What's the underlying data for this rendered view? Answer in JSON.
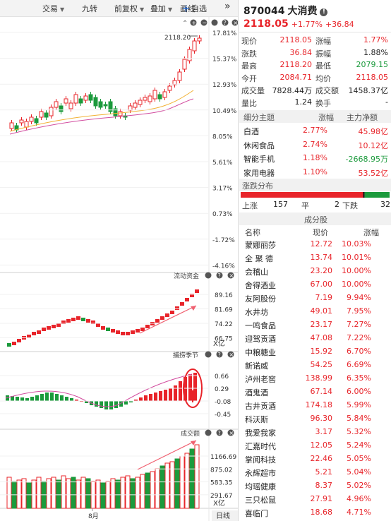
{
  "toolbar": {
    "items": [
      "交易",
      "九转",
      "前复权",
      "叠加",
      "画线"
    ],
    "add_label": "自选",
    "more": "»"
  },
  "chart_data": [
    {
      "type": "candlestick",
      "title": "",
      "price_label": "2118.20",
      "yticks": [
        "17.81%",
        "15.37%",
        "12.93%",
        "10.49%",
        "8.05%",
        "5.61%",
        "3.17%",
        "0.73%",
        "-1.72%",
        "-4.16%"
      ],
      "xlabel": "8月",
      "colors": {
        "up": "#e8242a",
        "down": "#1b9a3c",
        "ma1": "#f2b134",
        "ma2": "#d24d9f"
      }
    },
    {
      "type": "bar",
      "title": "流动资金",
      "unit": "X亿",
      "yticks": [
        "89.16",
        "81.69",
        "74.22",
        "66.75"
      ]
    },
    {
      "type": "bar",
      "title": "捕捞季节",
      "yticks": [
        "0.66",
        "0.29",
        "-0.08",
        "-0.45"
      ]
    },
    {
      "type": "bar",
      "title": "成交额",
      "unit": "X亿",
      "yticks": [
        "1166.69",
        "875.02",
        "583.35",
        "291.67"
      ]
    }
  ],
  "chart_footer": {
    "xlabel": "8月",
    "period": "日线"
  },
  "stock": {
    "code": "870044",
    "name": "大消费",
    "price": "2118.05",
    "change_pct": "+1.77%",
    "change": "+36.84"
  },
  "quote": [
    {
      "l1": "现价",
      "v1": "2118.05",
      "c1": "red",
      "l2": "涨幅",
      "v2": "1.77%",
      "c2": "red"
    },
    {
      "l1": "涨跌",
      "v1": "36.84",
      "c1": "red",
      "l2": "振幅",
      "v2": "1.88%",
      "c2": "dark"
    },
    {
      "l1": "最高",
      "v1": "2118.20",
      "c1": "red",
      "l2": "最低",
      "v2": "2079.15",
      "c2": "green"
    },
    {
      "l1": "今开",
      "v1": "2084.71",
      "c1": "red",
      "l2": "均价",
      "v2": "2118.05",
      "c2": "red"
    },
    {
      "l1": "成交量",
      "v1": "7828.44万",
      "c1": "dark",
      "l2": "成交额",
      "v2": "1458.37亿",
      "c2": "dark"
    },
    {
      "l1": "量比",
      "v1": "1.24",
      "c1": "dark",
      "l2": "换手",
      "v2": "-",
      "c2": "dark"
    }
  ],
  "themes": {
    "headers": [
      "细分主题",
      "涨幅",
      "主力净额"
    ],
    "rows": [
      {
        "name": "白酒",
        "pct": "2.77%",
        "net": "45.98亿",
        "net_color": "red"
      },
      {
        "name": "休闲食品",
        "pct": "2.74%",
        "net": "10.12亿",
        "net_color": "red"
      },
      {
        "name": "智能手机",
        "pct": "1.18%",
        "net": "-2668.95万",
        "net_color": "green"
      },
      {
        "name": "家用电器",
        "pct": "1.10%",
        "net": "53.52亿",
        "net_color": "red"
      }
    ]
  },
  "distribution": {
    "title": "涨跌分布",
    "up_label": "上涨",
    "up": 157,
    "flat_label": "平",
    "flat": 2,
    "down_label": "下跌",
    "down": 32,
    "colors": {
      "up": "#e8242a",
      "flat": "#111111",
      "down": "#1b9a3c"
    }
  },
  "constituents": {
    "title": "成分股",
    "headers": [
      "名称",
      "现价",
      "涨幅"
    ],
    "rows": [
      {
        "name": "蒙娜丽莎",
        "price": "12.72",
        "pct": "10.03%"
      },
      {
        "name": "全 聚 德",
        "price": "13.74",
        "pct": "10.01%"
      },
      {
        "name": "会稽山",
        "price": "23.20",
        "pct": "10.00%"
      },
      {
        "name": "舍得酒业",
        "price": "67.00",
        "pct": "10.00%"
      },
      {
        "name": "友阿股份",
        "price": "7.19",
        "pct": "9.94%"
      },
      {
        "name": "水井坊",
        "price": "49.01",
        "pct": "7.95%"
      },
      {
        "name": "一鸣食品",
        "price": "23.17",
        "pct": "7.27%"
      },
      {
        "name": "迎驾贡酒",
        "price": "47.08",
        "pct": "7.22%"
      },
      {
        "name": "中粮糖业",
        "price": "15.92",
        "pct": "6.70%"
      },
      {
        "name": "新诺威",
        "price": "54.25",
        "pct": "6.69%"
      },
      {
        "name": "泸州老窖",
        "price": "138.99",
        "pct": "6.35%"
      },
      {
        "name": "酒鬼酒",
        "price": "67.14",
        "pct": "6.00%"
      },
      {
        "name": "古井贡酒",
        "price": "174.18",
        "pct": "5.99%"
      },
      {
        "name": "科沃斯",
        "price": "96.30",
        "pct": "5.84%"
      },
      {
        "name": "我爱我家",
        "price": "3.17",
        "pct": "5.32%"
      },
      {
        "name": "汇嘉时代",
        "price": "12.05",
        "pct": "5.24%"
      },
      {
        "name": "掌阅科技",
        "price": "22.46",
        "pct": "5.05%"
      },
      {
        "name": "永辉超市",
        "price": "5.21",
        "pct": "5.04%"
      },
      {
        "name": "均瑶健康",
        "price": "8.37",
        "pct": "5.02%"
      },
      {
        "name": "三只松鼠",
        "price": "27.91",
        "pct": "4.96%"
      },
      {
        "name": "喜临门",
        "price": "18.68",
        "pct": "4.71%"
      }
    ]
  }
}
